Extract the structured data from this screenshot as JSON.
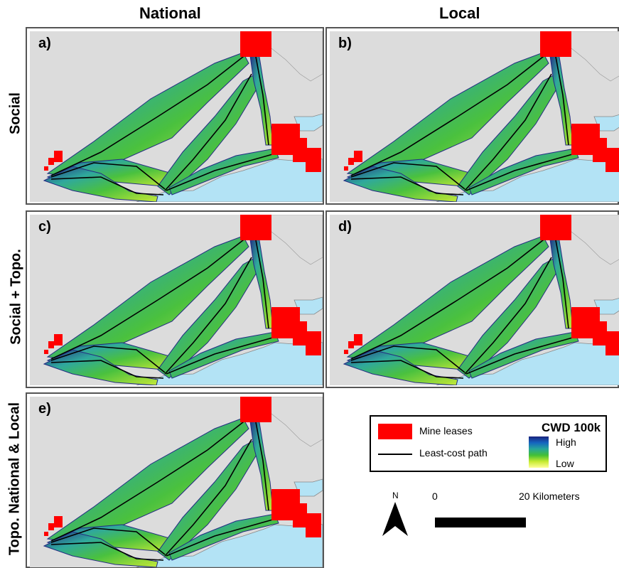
{
  "columns": {
    "left": "National",
    "right": "Local"
  },
  "rows": {
    "row1": "Social",
    "row2": "Social + Topo.",
    "row3": "Topo. National & Local"
  },
  "panels": {
    "a": "a)",
    "b": "b)",
    "c": "c)",
    "d": "d)",
    "e": "e)"
  },
  "legend": {
    "mine_leases": "Mine leases",
    "least_cost_path": "Least-cost path",
    "cwd_title": "CWD 100k",
    "high": "High",
    "low": "Low"
  },
  "scale": {
    "zero": "0",
    "distance": "20 Kilometers"
  },
  "north": "N",
  "colors": {
    "land": "#dcdcdc",
    "water": "#b3e3f5",
    "mine": "#ff0000",
    "corridor_high": "#1a237e",
    "corridor_mid": "#2fb34a",
    "corridor_low": "#ffff99"
  }
}
